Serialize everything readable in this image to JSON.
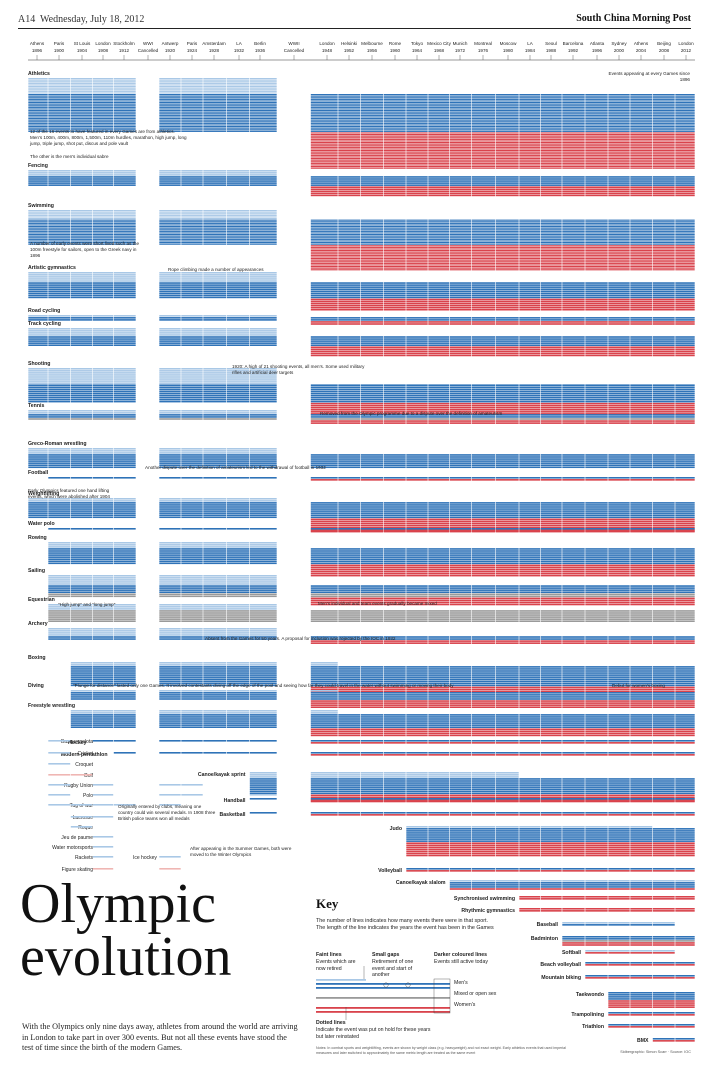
{
  "header": {
    "page": "A14",
    "date": "Wednesday, July 18, 2012",
    "paper": "South China Morning Post"
  },
  "title": "Olympic evolution",
  "intro": "With the Olympics only nine days away, athletes from around the world are arriving in London to take part in over 300 events. But not all these events have stood the test of time since the birth of the modern Games.",
  "key": {
    "title": "Key",
    "description": "The number of lines indicates how many events there were in that sport. The length of the line indicates the years the event has been in the Games",
    "faint_title": "Faint lines",
    "faint_text": "Events which are now retired",
    "gaps_title": "Small gaps",
    "gaps_text": "Retirement of one event and start of another",
    "darker_title": "Darker coloured lines",
    "darker_text": "Events still active today",
    "dotted_title": "Dotted lines",
    "dotted_text": "Indicate the event was put on hold for these years but later reinstated",
    "mens": "Men's",
    "mixed": "Mixed or open sex",
    "womens": "Women's"
  },
  "notes": "Notes: In combat sports and weightlifting, events are shown by weight class (e.g. heavyweight) and not exact weight. Early athletics events that used imperial measures and later switched to approximately the same metric length are treated as the same event",
  "credit": "Sidbergraphic: Simon Scarr · Source: IOC",
  "colors": {
    "mens": "#2f73b8",
    "mens_faint": "#a9c8e6",
    "womens": "#d9434c",
    "womens_faint": "#efb6b3",
    "mixed": "#9a9a9a",
    "mixed_faint": "#d6d6d6"
  },
  "chart_data": {
    "type": "timeline",
    "x": [
      "1896",
      "1900",
      "1904",
      "1908",
      "1912",
      "1916",
      "1920",
      "1924",
      "1928",
      "1932",
      "1936",
      "1940",
      "1948",
      "1952",
      "1956",
      "1960",
      "1964",
      "1968",
      "1972",
      "1976",
      "1980",
      "1984",
      "1988",
      "1992",
      "1996",
      "2000",
      "2004",
      "2008",
      "2012"
    ],
    "cancelled": [
      "1916",
      "1940"
    ],
    "games": [
      {
        "city": "Athens",
        "year": "1896"
      },
      {
        "city": "Paris",
        "year": "1900"
      },
      {
        "city": "St Louis",
        "year": "1904"
      },
      {
        "city": "London",
        "year": "1908"
      },
      {
        "city": "Stockholm",
        "year": "1912"
      },
      {
        "city": "WWI",
        "year": "Cancelled"
      },
      {
        "city": "Antwerp",
        "year": "1920"
      },
      {
        "city": "Paris",
        "year": "1924"
      },
      {
        "city": "Amsterdam",
        "year": "1928"
      },
      {
        "city": "LA",
        "year": "1932"
      },
      {
        "city": "Berlin",
        "year": "1936"
      },
      {
        "city": "WWII",
        "year": "Cancelled"
      },
      {
        "city": "London",
        "year": "1948"
      },
      {
        "city": "Helsinki",
        "year": "1952"
      },
      {
        "city": "Melbourne",
        "year": "1956"
      },
      {
        "city": "Rome",
        "year": "1960"
      },
      {
        "city": "Tokyo",
        "year": "1964"
      },
      {
        "city": "Mexico City",
        "year": "1968"
      },
      {
        "city": "Munich",
        "year": "1972"
      },
      {
        "city": "Montreal",
        "year": "1976"
      },
      {
        "city": "Moscow",
        "year": "1980"
      },
      {
        "city": "LA",
        "year": "1984"
      },
      {
        "city": "Seoul",
        "year": "1988"
      },
      {
        "city": "Barcelona",
        "year": "1992"
      },
      {
        "city": "Atlanta",
        "year": "1996"
      },
      {
        "city": "Sydney",
        "year": "2000"
      },
      {
        "city": "Athens",
        "year": "2004"
      },
      {
        "city": "Beijing",
        "year": "2008"
      },
      {
        "city": "London",
        "year": "2012"
      }
    ],
    "sports": [
      {
        "name": "Athletics",
        "start": "1896",
        "end": "2012",
        "men": 24,
        "women": 23,
        "mixed": 0,
        "retired": 12
      },
      {
        "name": "Fencing",
        "start": "1896",
        "end": "2012",
        "men": 5,
        "women": 5,
        "mixed": 0,
        "retired": 3
      },
      {
        "name": "Swimming",
        "start": "1896",
        "end": "2012",
        "men": 16,
        "women": 16,
        "mixed": 0,
        "retired": 6
      },
      {
        "name": "Artistic gymnastics",
        "start": "1896",
        "end": "2012",
        "men": 8,
        "women": 6,
        "mixed": 0,
        "retired": 5
      },
      {
        "name": "Road cycling",
        "start": "1896",
        "end": "2012",
        "men": 2,
        "women": 2,
        "mixed": 0,
        "retired": 1
      },
      {
        "name": "Track cycling",
        "start": "1896",
        "end": "2012",
        "men": 5,
        "women": 5,
        "mixed": 0,
        "retired": 4
      },
      {
        "name": "Shooting",
        "start": "1896",
        "end": "2012",
        "men": 9,
        "women": 6,
        "mixed": 0,
        "retired": 8
      },
      {
        "name": "Tennis",
        "start": "1896",
        "end": "2012",
        "men": 2,
        "women": 2,
        "mixed": 1,
        "retired": 2
      },
      {
        "name": "Greco-Roman wrestling",
        "start": "1896",
        "end": "2012",
        "men": 7,
        "women": 0,
        "mixed": 0,
        "retired": 3
      },
      {
        "name": "Football",
        "start": "1900",
        "end": "2012",
        "men": 1,
        "women": 1,
        "mixed": 0,
        "retired": 0
      },
      {
        "name": "Weightlifting",
        "start": "1896",
        "end": "2012",
        "men": 8,
        "women": 7,
        "mixed": 0,
        "retired": 2
      },
      {
        "name": "Water polo",
        "start": "1900",
        "end": "2012",
        "men": 1,
        "women": 1,
        "mixed": 0,
        "retired": 0
      },
      {
        "name": "Rowing",
        "start": "1900",
        "end": "2012",
        "men": 8,
        "women": 6,
        "mixed": 0,
        "retired": 3
      },
      {
        "name": "Sailing",
        "start": "1900",
        "end": "2012",
        "men": 4,
        "women": 4,
        "mixed": 2,
        "retired": 5
      },
      {
        "name": "Equestrian",
        "start": "1900",
        "end": "2012",
        "men": 0,
        "women": 0,
        "mixed": 6,
        "retired": 3
      },
      {
        "name": "Archery",
        "start": "1900",
        "end": "2012",
        "men": 2,
        "women": 2,
        "mixed": 0,
        "retired": 4
      },
      {
        "name": "Boxing",
        "start": "1904",
        "end": "2012",
        "men": 10,
        "women": 3,
        "mixed": 0,
        "retired": 2
      },
      {
        "name": "Diving",
        "start": "1904",
        "end": "2012",
        "men": 4,
        "women": 4,
        "mixed": 0,
        "retired": 1
      },
      {
        "name": "Freestyle wrestling",
        "start": "1904",
        "end": "2012",
        "men": 7,
        "women": 4,
        "mixed": 0,
        "retired": 2
      },
      {
        "name": "Hockey",
        "start": "1908",
        "end": "2012",
        "men": 1,
        "women": 1,
        "mixed": 0,
        "retired": 0
      },
      {
        "name": "Modern pentathlon",
        "start": "1912",
        "end": "2012",
        "men": 1,
        "women": 1,
        "mixed": 0,
        "retired": 0
      },
      {
        "name": "Canoe/kayak sprint",
        "start": "1936",
        "end": "2012",
        "men": 8,
        "women": 4,
        "mixed": 0,
        "retired": 3
      },
      {
        "name": "Handball",
        "start": "1936",
        "end": "2012",
        "men": 1,
        "women": 1,
        "mixed": 0,
        "retired": 0
      },
      {
        "name": "Basketball",
        "start": "1936",
        "end": "2012",
        "men": 1,
        "women": 1,
        "mixed": 0,
        "retired": 0
      },
      {
        "name": "Judo",
        "start": "1964",
        "end": "2012",
        "men": 7,
        "women": 7,
        "mixed": 0,
        "retired": 1
      },
      {
        "name": "Volleyball",
        "start": "1964",
        "end": "2012",
        "men": 1,
        "women": 1,
        "mixed": 0,
        "retired": 0
      },
      {
        "name": "Canoe/kayak slalom",
        "start": "1972",
        "end": "2012",
        "men": 3,
        "women": 1,
        "mixed": 0,
        "retired": 1
      },
      {
        "name": "Synchronised swimming",
        "start": "1984",
        "end": "2012",
        "men": 0,
        "women": 2,
        "mixed": 0,
        "retired": 0
      },
      {
        "name": "Rhythmic gymnastics",
        "start": "1984",
        "end": "2012",
        "men": 0,
        "women": 2,
        "mixed": 0,
        "retired": 0
      },
      {
        "name": "Baseball",
        "start": "1992",
        "end": "2008",
        "men": 1,
        "women": 0,
        "mixed": 0,
        "retired": 1
      },
      {
        "name": "Badminton",
        "start": "1992",
        "end": "2012",
        "men": 2,
        "women": 2,
        "mixed": 1,
        "retired": 0
      },
      {
        "name": "Softball",
        "start": "1996",
        "end": "2008",
        "men": 0,
        "women": 1,
        "mixed": 0,
        "retired": 1
      },
      {
        "name": "Beach volleyball",
        "start": "1996",
        "end": "2012",
        "men": 1,
        "women": 1,
        "mixed": 0,
        "retired": 0
      },
      {
        "name": "Mountain biking",
        "start": "1996",
        "end": "2012",
        "men": 1,
        "women": 1,
        "mixed": 0,
        "retired": 0
      },
      {
        "name": "Taekwondo",
        "start": "2000",
        "end": "2012",
        "men": 4,
        "women": 4,
        "mixed": 0,
        "retired": 0
      },
      {
        "name": "Trampolining",
        "start": "2000",
        "end": "2012",
        "men": 1,
        "women": 1,
        "mixed": 0,
        "retired": 0
      },
      {
        "name": "Triathlon",
        "start": "2000",
        "end": "2012",
        "men": 1,
        "women": 1,
        "mixed": 0,
        "retired": 0
      },
      {
        "name": "BMX",
        "start": "2008",
        "end": "2012",
        "men": 1,
        "women": 1,
        "mixed": 0,
        "retired": 0
      }
    ],
    "retired_sports": [
      {
        "name": "Basque pelota",
        "years": [
          "1900"
        ]
      },
      {
        "name": "Cricket",
        "years": [
          "1900"
        ]
      },
      {
        "name": "Croquet",
        "years": [
          "1900"
        ]
      },
      {
        "name": "Golf",
        "years": [
          "1900",
          "1904"
        ]
      },
      {
        "name": "Rugby Union",
        "years": [
          "1900",
          "1908",
          "1920",
          "1924"
        ]
      },
      {
        "name": "Polo",
        "years": [
          "1900",
          "1908",
          "1920",
          "1924",
          "1936"
        ]
      },
      {
        "name": "Tug of war",
        "years": [
          "1900",
          "1904",
          "1908",
          "1912",
          "1920"
        ]
      },
      {
        "name": "Lacrosse",
        "years": [
          "1904",
          "1908"
        ]
      },
      {
        "name": "Roque",
        "years": [
          "1904"
        ]
      },
      {
        "name": "Jeu de paume",
        "years": [
          "1908"
        ]
      },
      {
        "name": "Water motorsports",
        "years": [
          "1908"
        ]
      },
      {
        "name": "Rackets",
        "years": [
          "1908"
        ]
      },
      {
        "name": "Figure skating",
        "years": [
          "1908",
          "1920"
        ]
      },
      {
        "name": "Ice hockey",
        "years": [
          "1920"
        ]
      }
    ],
    "annotations": [
      "Events appearing at every Games since 1896",
      "12 of the 16 events to have featured in every Games are from athletics. Men's 100m, 400m, 800m, 1,500m, 110m hurdles, marathon, high jump, long jump, triple jump, shot put, discus and pole vault",
      "The other is the men's individual sabre",
      "A number of early events were short lived such as the 100m freestyle for sailors, open to the Greek navy in 1896",
      "Rope climbing made a number of appearances",
      "1920: A high of 21 shooting events, all men's. Some used military rifles and artificial deer targets",
      "Removed from the Olympic programme due to a dispute over the definition of amateurism",
      "Another dispute over the definition of amateurism led to the withdrawal of football in 1932",
      "Early Olympics featured one hand lifting events, which were abolished after 1904",
      "\"High jump\" and \"long jump\"",
      "Men's individual and team events gradually became mixed",
      "Absent from the Games for 50 years. A proposal for inclusion was rejected by the IOC in 1932",
      "\"Plunge for distance\" lasted only one Games. It involved contestants diving off the edge of the pool and seeing how far they could travel in the water without swimming or moving their body",
      "Debut for women's boxing",
      "Originally entered by clubs, meaning one country could win several medals. In 1908 three British police teams won all medals",
      "After appearing in the Summer Games, both were moved to the Winter Olympics"
    ]
  }
}
